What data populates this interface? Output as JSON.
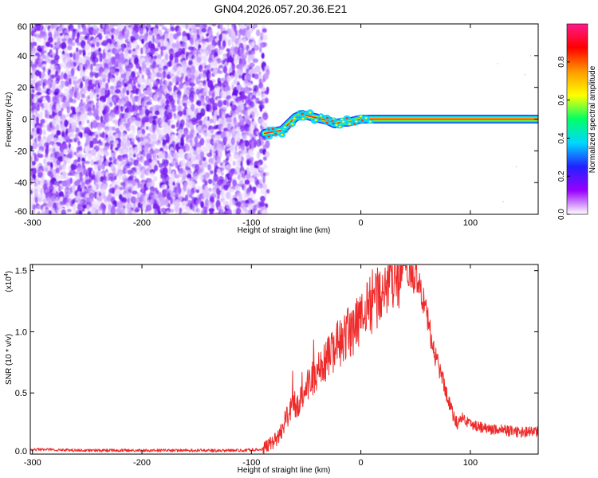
{
  "title": "GN04.2026.057.20.36.E21",
  "chart_data": [
    {
      "type": "heatmap",
      "title": "GN04.2026.057.20.36.E21",
      "xlabel": "Height of straight line (km)",
      "ylabel": "Frequency (Hz)",
      "xlim": [
        -302,
        162
      ],
      "ylim": [
        -60,
        60
      ],
      "xticks": [
        -300,
        -200,
        -100,
        0,
        100
      ],
      "xtick_labels": [
        "-300",
        "-200",
        "-100",
        "0",
        "100"
      ],
      "yticks": [
        60,
        40,
        20,
        0,
        -20,
        -40,
        -60
      ],
      "ytick_labels": [
        "60",
        "40",
        "20",
        "0",
        "-20",
        "-40",
        "-60"
      ],
      "noise_region": {
        "x_from": -302,
        "x_to": -85,
        "freq_from": -60,
        "freq_to": 60
      },
      "ridge": {
        "x": [
          -88,
          -80,
          -72,
          -66,
          -60,
          -54,
          -48,
          -42,
          -36,
          -30,
          -24,
          -18,
          -12,
          -6,
          0,
          10,
          162
        ],
        "freq": [
          -9,
          -8,
          -7,
          -3,
          1,
          3,
          2,
          1,
          0,
          -1,
          -3,
          -2,
          -2,
          -1,
          0,
          0,
          0
        ]
      },
      "colorbar": {
        "label": "Normalized spectral amplitude",
        "range": [
          0,
          1
        ],
        "ticks": [
          0.0,
          0.2,
          0.4,
          0.6,
          0.8
        ],
        "tick_labels": [
          "0.0",
          "0.2",
          "0.4",
          "0.6",
          "0.8"
        ],
        "stops": [
          "#ffffff",
          "#9900ff",
          "#2222ff",
          "#00d8ff",
          "#00ff66",
          "#ffff00",
          "#ff9900",
          "#ff0000",
          "#ff1a8c"
        ]
      }
    },
    {
      "type": "line",
      "title": "",
      "xlabel": "Height of straight line (km)",
      "ylabel": "SNR (10 * v/v)",
      "multiplier_label": "(x10",
      "multiplier_exp": "4",
      "multiplier_close": ")",
      "xlim": [
        -302,
        162
      ],
      "ylim": [
        0,
        1.55
      ],
      "xticks": [
        -300,
        -200,
        -100,
        0,
        100
      ],
      "xtick_labels": [
        "-300",
        "-200",
        "-100",
        "0",
        "100"
      ],
      "yticks": [
        0.0,
        0.5,
        1.0,
        1.5
      ],
      "ytick_labels": [
        "0.0",
        "0.5",
        "1.0",
        "1.5"
      ],
      "series": [
        {
          "name": "SNR",
          "color": "#ee2a2a",
          "x": [
            -302,
            -250,
            -200,
            -150,
            -110,
            -90,
            -80,
            -75,
            -70,
            -65,
            -60,
            -55,
            -50,
            -45,
            -40,
            -35,
            -30,
            -25,
            -20,
            -15,
            -10,
            -5,
            0,
            5,
            10,
            15,
            20,
            25,
            30,
            35,
            40,
            45,
            50,
            55,
            60,
            65,
            70,
            75,
            80,
            85,
            88,
            92,
            100,
            110,
            120,
            130,
            140,
            150,
            162
          ],
          "values": [
            0.04,
            0.03,
            0.03,
            0.03,
            0.03,
            0.04,
            0.1,
            0.15,
            0.25,
            0.35,
            0.4,
            0.45,
            0.55,
            0.6,
            0.65,
            0.7,
            0.8,
            0.85,
            0.9,
            0.95,
            1.0,
            1.05,
            1.1,
            1.2,
            1.25,
            1.3,
            1.35,
            1.4,
            1.45,
            1.48,
            1.5,
            1.48,
            1.45,
            1.35,
            1.15,
            0.9,
            0.75,
            0.6,
            0.45,
            0.3,
            0.25,
            0.3,
            0.25,
            0.22,
            0.2,
            0.2,
            0.18,
            0.18,
            0.18
          ]
        }
      ]
    }
  ]
}
